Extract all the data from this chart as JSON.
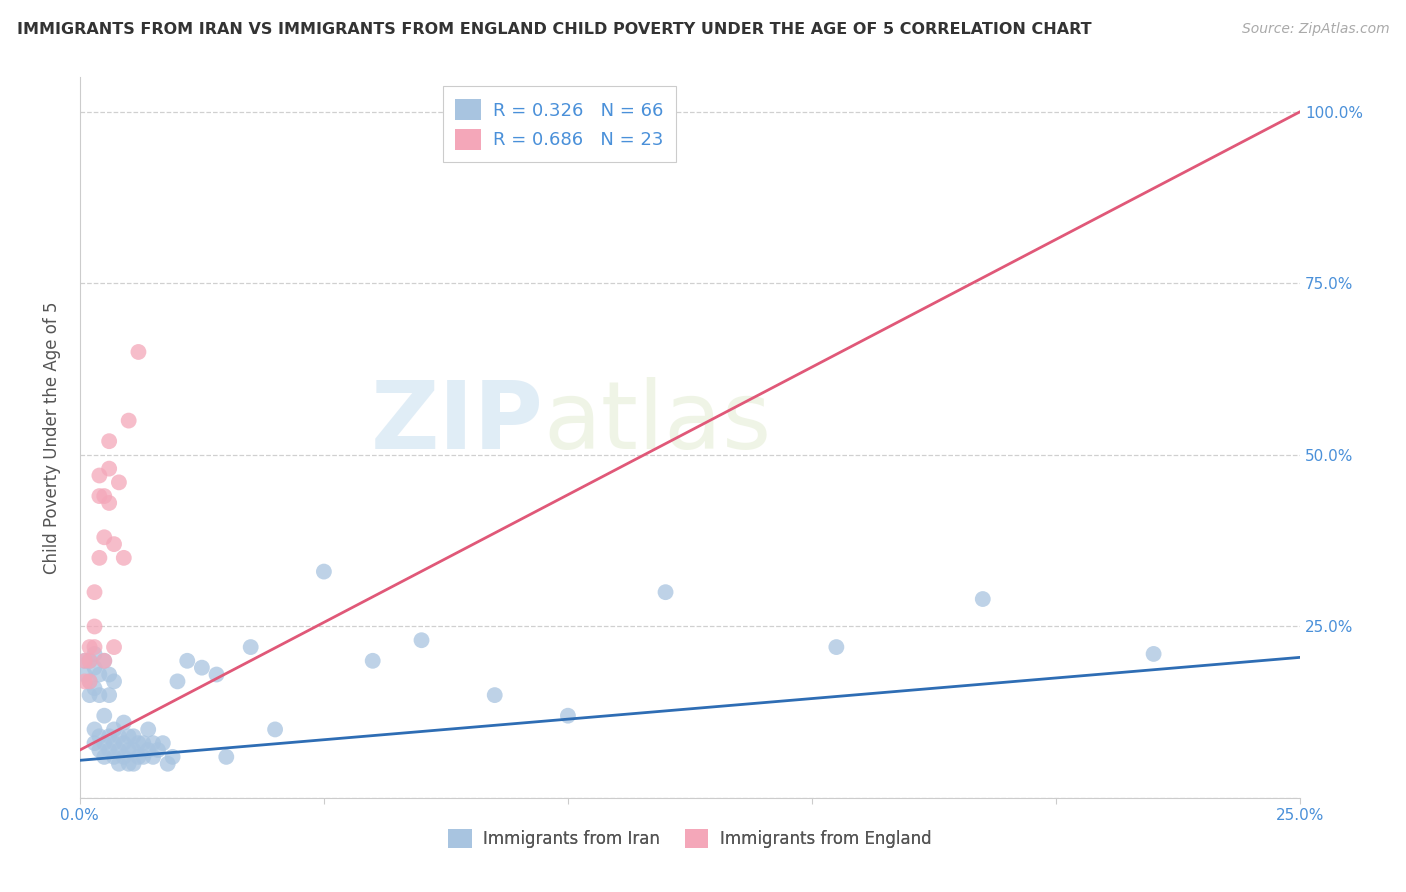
{
  "title": "IMMIGRANTS FROM IRAN VS IMMIGRANTS FROM ENGLAND CHILD POVERTY UNDER THE AGE OF 5 CORRELATION CHART",
  "source": "Source: ZipAtlas.com",
  "ylabel": "Child Poverty Under the Age of 5",
  "xlim": [
    0.0,
    0.25
  ],
  "ylim": [
    0.0,
    1.05
  ],
  "xtick_vals": [
    0.0,
    0.05,
    0.1,
    0.15,
    0.2,
    0.25
  ],
  "xticklabels": [
    "0.0%",
    "",
    "",
    "",
    "",
    "25.0%"
  ],
  "ytick_vals": [
    0.0,
    0.25,
    0.5,
    0.75,
    1.0
  ],
  "yticklabels_right": [
    "",
    "25.0%",
    "50.0%",
    "75.0%",
    "100.0%"
  ],
  "iran_color": "#a8c4e0",
  "england_color": "#f4a7b9",
  "iran_line_color": "#2e6db4",
  "england_line_color": "#e05878",
  "iran_R": 0.326,
  "iran_N": 66,
  "england_R": 0.686,
  "england_N": 23,
  "watermark_zip": "ZIP",
  "watermark_atlas": "atlas",
  "iran_scatter_x": [
    0.001,
    0.001,
    0.002,
    0.002,
    0.002,
    0.003,
    0.003,
    0.003,
    0.003,
    0.003,
    0.004,
    0.004,
    0.004,
    0.004,
    0.005,
    0.005,
    0.005,
    0.005,
    0.006,
    0.006,
    0.006,
    0.006,
    0.007,
    0.007,
    0.007,
    0.007,
    0.008,
    0.008,
    0.008,
    0.009,
    0.009,
    0.009,
    0.01,
    0.01,
    0.01,
    0.011,
    0.011,
    0.011,
    0.012,
    0.012,
    0.013,
    0.013,
    0.014,
    0.014,
    0.015,
    0.015,
    0.016,
    0.017,
    0.018,
    0.019,
    0.02,
    0.022,
    0.025,
    0.028,
    0.03,
    0.035,
    0.04,
    0.05,
    0.06,
    0.07,
    0.085,
    0.1,
    0.12,
    0.155,
    0.185,
    0.22
  ],
  "iran_scatter_y": [
    0.18,
    0.2,
    0.15,
    0.17,
    0.2,
    0.08,
    0.1,
    0.16,
    0.19,
    0.21,
    0.07,
    0.09,
    0.15,
    0.18,
    0.06,
    0.08,
    0.12,
    0.2,
    0.07,
    0.09,
    0.15,
    0.18,
    0.06,
    0.08,
    0.1,
    0.17,
    0.05,
    0.07,
    0.09,
    0.06,
    0.08,
    0.11,
    0.05,
    0.07,
    0.09,
    0.05,
    0.07,
    0.09,
    0.06,
    0.08,
    0.06,
    0.08,
    0.07,
    0.1,
    0.06,
    0.08,
    0.07,
    0.08,
    0.05,
    0.06,
    0.17,
    0.2,
    0.19,
    0.18,
    0.06,
    0.22,
    0.1,
    0.33,
    0.2,
    0.23,
    0.15,
    0.12,
    0.3,
    0.22,
    0.29,
    0.21
  ],
  "england_scatter_x": [
    0.001,
    0.001,
    0.002,
    0.002,
    0.002,
    0.003,
    0.003,
    0.003,
    0.004,
    0.004,
    0.004,
    0.005,
    0.005,
    0.005,
    0.006,
    0.006,
    0.006,
    0.007,
    0.007,
    0.008,
    0.009,
    0.01,
    0.012
  ],
  "england_scatter_y": [
    0.17,
    0.2,
    0.2,
    0.22,
    0.17,
    0.22,
    0.25,
    0.3,
    0.35,
    0.44,
    0.47,
    0.38,
    0.44,
    0.2,
    0.43,
    0.48,
    0.52,
    0.22,
    0.37,
    0.46,
    0.35,
    0.55,
    0.65
  ],
  "england_line_x": [
    0.0,
    0.25
  ],
  "england_line_y": [
    0.07,
    1.0
  ],
  "iran_line_x": [
    0.0,
    0.25
  ],
  "iran_line_y": [
    0.055,
    0.205
  ]
}
